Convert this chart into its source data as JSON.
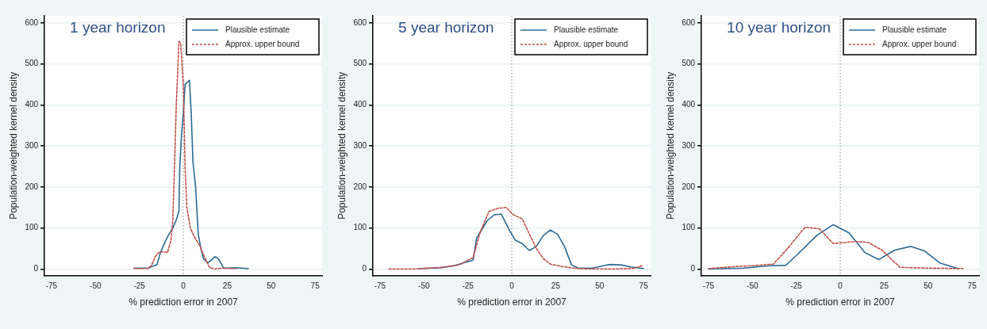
{
  "chart_data": [
    {
      "type": "line",
      "title": "1 year horizon",
      "xlabel": "% prediction error in 2007",
      "ylabel": "Population-weighted kernel density",
      "xlim": [
        -79,
        79
      ],
      "ylim": [
        -16,
        617
      ],
      "xticks": [
        -75,
        -50,
        -25,
        0,
        25,
        50,
        75
      ],
      "yticks": [
        0,
        100,
        200,
        300,
        400,
        500,
        600
      ],
      "grid": "y",
      "legend": "top right",
      "marker": "none",
      "ref_lines": [
        {
          "axis": "x",
          "value": 0,
          "line_style": "dotted",
          "color": "#888888"
        }
      ],
      "series": [
        {
          "name": "Plausible estimate",
          "color": "#2a6a94",
          "line_style": "solid",
          "x": [
            -28,
            -20,
            -17,
            -15,
            -13,
            -10,
            -8,
            -6,
            -4,
            -2.5,
            -2,
            -1,
            0,
            1,
            3.5,
            4.5,
            5.5,
            7,
            8.5,
            10,
            11.5,
            14,
            16,
            18,
            20,
            23,
            30,
            37
          ],
          "values": [
            2,
            2,
            8,
            10,
            40,
            70,
            86,
            100,
            120,
            140,
            250,
            330,
            380,
            450,
            460,
            380,
            260,
            200,
            85,
            50,
            25,
            15,
            22,
            30,
            25,
            2,
            3,
            1
          ]
        },
        {
          "name": "Approx. upper bound",
          "color": "#c0504d",
          "line_style": "dashed",
          "x": [
            -28,
            -20,
            -18,
            -16,
            -14,
            -11,
            -9,
            -7,
            -6,
            -5,
            -4,
            -3,
            -2.5,
            -1.5,
            0,
            1,
            2,
            4,
            6,
            9,
            12,
            15,
            18,
            22,
            30
          ],
          "values": [
            1,
            1,
            10,
            30,
            40,
            42,
            40,
            70,
            120,
            250,
            400,
            500,
            555,
            550,
            450,
            250,
            150,
            100,
            80,
            60,
            30,
            3,
            0,
            2,
            1
          ]
        }
      ]
    },
    {
      "type": "line",
      "title": "5 year horizon",
      "xlabel": "% prediction error in 2007",
      "ylabel": "Population-weighted kernel density",
      "xlim": [
        -79,
        79
      ],
      "ylim": [
        -16,
        617
      ],
      "xticks": [
        -75,
        -50,
        -25,
        0,
        25,
        50,
        75
      ],
      "yticks": [
        0,
        100,
        200,
        300,
        400,
        500,
        600
      ],
      "grid": "y",
      "legend": "top right",
      "marker": "none",
      "ref_lines": [
        {
          "axis": "x",
          "value": 0,
          "line_style": "dotted",
          "color": "#888888"
        }
      ],
      "series": [
        {
          "name": "Plausible estimate",
          "color": "#2a6a94",
          "line_style": "solid",
          "x": [
            -53,
            -40,
            -33,
            -28,
            -22,
            -20,
            -14,
            -10,
            -6,
            -2,
            2,
            6,
            10,
            14,
            18,
            22,
            26,
            30,
            34,
            38,
            46,
            52,
            56,
            62,
            68,
            75
          ],
          "values": [
            1,
            3,
            8,
            14,
            22,
            75,
            118,
            132,
            134,
            100,
            70,
            62,
            45,
            55,
            82,
            95,
            85,
            55,
            10,
            2,
            2,
            8,
            11,
            10,
            5,
            1
          ]
        },
        {
          "name": "Approx. upper bound",
          "color": "#c0504d",
          "line_style": "dashed",
          "x": [
            -70,
            -55,
            -40,
            -30,
            -22,
            -18,
            -13,
            -8,
            -3,
            0,
            2,
            6,
            10,
            14,
            18,
            22,
            30,
            38,
            45,
            60,
            70,
            74
          ],
          "values": [
            0,
            0,
            4,
            10,
            28,
            90,
            140,
            148,
            150,
            135,
            130,
            122,
            85,
            50,
            25,
            12,
            5,
            1,
            0,
            0,
            2,
            8
          ]
        }
      ]
    },
    {
      "type": "line",
      "title": "10 year horizon",
      "xlabel": "% prediction error in 2007",
      "ylabel": "Population-weighted kernel density",
      "xlim": [
        -79,
        79
      ],
      "ylim": [
        -16,
        617
      ],
      "xticks": [
        -75,
        -50,
        -25,
        0,
        25,
        50,
        75
      ],
      "yticks": [
        0,
        100,
        200,
        300,
        400,
        500,
        600
      ],
      "grid": "y",
      "legend": "top right",
      "marker": "none",
      "ref_lines": [
        {
          "axis": "x",
          "value": 0,
          "line_style": "dotted",
          "color": "#888888"
        }
      ],
      "series": [
        {
          "name": "Plausible estimate",
          "color": "#2a6a94",
          "line_style": "solid",
          "x": [
            -75,
            -55,
            -48,
            -40,
            -31,
            -25,
            -13,
            -4,
            5,
            14,
            22,
            31,
            40,
            48,
            57,
            67
          ],
          "values": [
            0,
            2,
            5,
            8,
            9,
            33,
            83,
            108,
            88,
            40,
            23,
            46,
            55,
            44,
            14,
            1
          ]
        },
        {
          "name": "Approx. upper bound",
          "color": "#c0504d",
          "line_style": "dashed",
          "x": [
            -75,
            -60,
            -50,
            -38,
            -30,
            -20,
            -12,
            -4,
            8,
            16,
            24,
            34,
            50,
            70
          ],
          "values": [
            1,
            6,
            8,
            12,
            50,
            102,
            98,
            62,
            67,
            65,
            45,
            4,
            2,
            1
          ]
        }
      ]
    }
  ]
}
